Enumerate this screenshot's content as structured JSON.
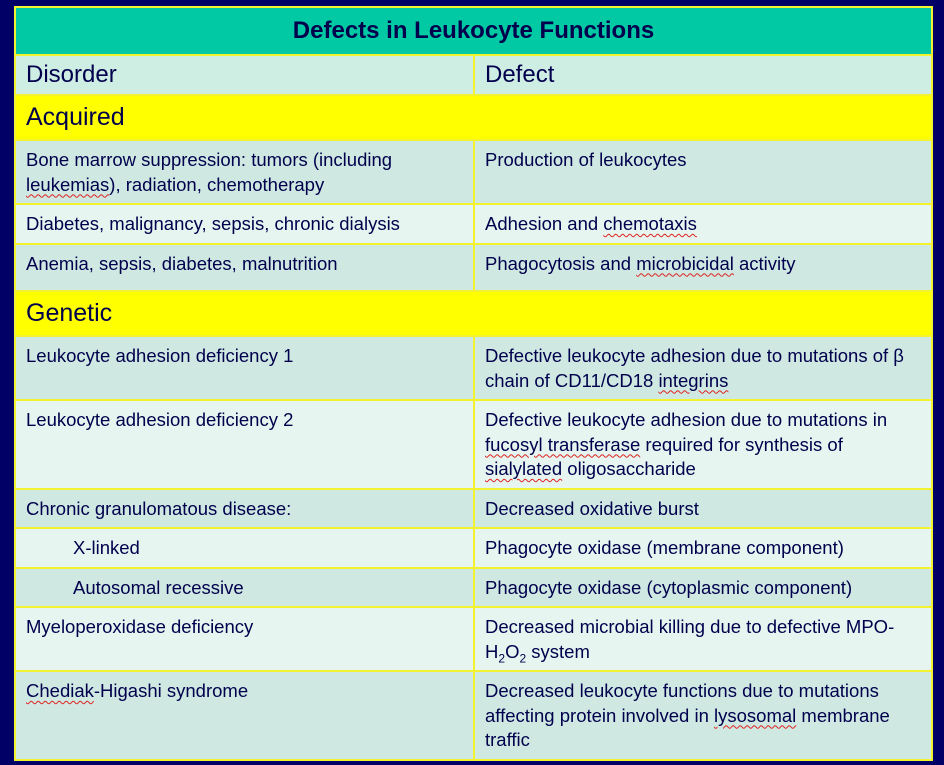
{
  "title": "Defects in Leukocyte Functions",
  "headers": {
    "disorder": "Disorder",
    "defect": "Defect"
  },
  "sections": {
    "acquired": "Acquired",
    "genetic": "Genetic"
  },
  "acquired_rows": [
    {
      "disorder": "Bone marrow suppression: tumors (including leukemias), radiation, chemotherapy",
      "defect": "Production of leukocytes"
    },
    {
      "disorder": "Diabetes, malignancy, sepsis, chronic dialysis",
      "defect": "Adhesion and chemotaxis"
    },
    {
      "disorder": "Anemia, sepsis, diabetes, malnutrition",
      "defect": "Phagocytosis and microbicidal activity"
    }
  ],
  "genetic_rows": [
    {
      "disorder": "Leukocyte adhesion deficiency 1",
      "defect": "Defective leukocyte adhesion due to mutations of β chain of CD11/CD18 integrins"
    },
    {
      "disorder": "Leukocyte adhesion deficiency 2",
      "defect": "Defective leukocyte adhesion due to mutations in fucosyl transferase required for synthesis of sialylated oligosaccharide"
    },
    {
      "disorder": "Chronic granulomatous disease:",
      "defect": "Decreased oxidative burst"
    },
    {
      "disorder": "X-linked",
      "defect": "Phagocyte oxidase (membrane component)"
    },
    {
      "disorder": "Autosomal recessive",
      "defect": "Phagocyte oxidase (cytoplasmic component)"
    },
    {
      "disorder": "Myeloperoxidase deficiency",
      "defect": "Decreased microbial killing due to defective MPO-H2O2 system"
    },
    {
      "disorder": "Chediak-Higashi syndrome",
      "defect": "Decreased leukocyte functions due to mutations affecting protein involved in lysosomal membrane traffic"
    }
  ],
  "colors": {
    "background": "#000066",
    "title_bg": "#00c9a3",
    "section_bg": "#ffff00",
    "row_bg": "#cfe9e2",
    "border": "#f2f230",
    "text": "#00004d"
  }
}
